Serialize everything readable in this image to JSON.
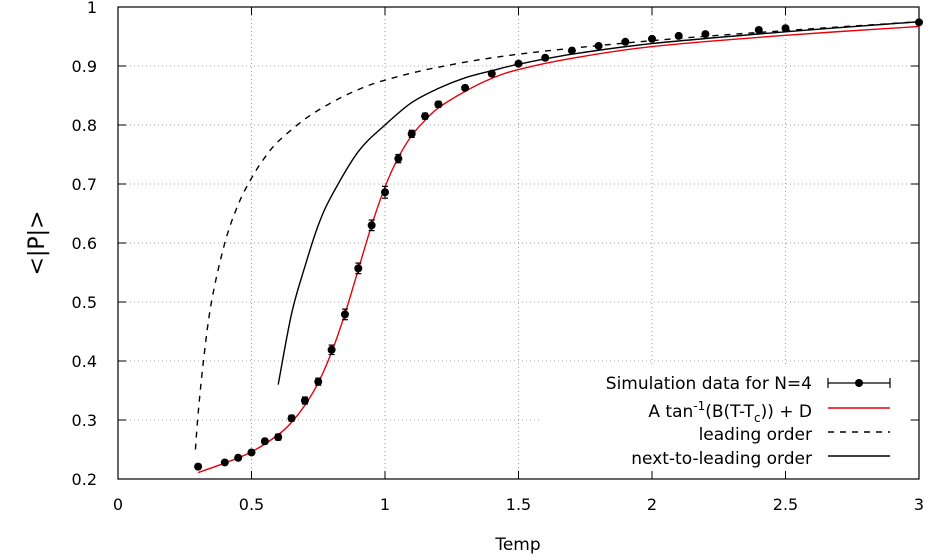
{
  "chart_data": {
    "type": "scatter",
    "xlabel": "Temp",
    "ylabel": "<|P|>",
    "xlim": [
      0,
      3
    ],
    "ylim": [
      0.2,
      1
    ],
    "grid": true,
    "legend_position": "bottom-right",
    "x_ticks": [
      "0",
      "0.5",
      "1",
      "1.5",
      "2",
      "2.5",
      "3"
    ],
    "y_ticks": [
      "0.2",
      "0.3",
      "0.4",
      "0.5",
      "0.6",
      "0.7",
      "0.8",
      "0.9",
      "1"
    ],
    "series": [
      {
        "name": "Simulation data for N=4",
        "style": "points-errorbars",
        "color": "#000000",
        "x": [
          0.3,
          0.4,
          0.45,
          0.5,
          0.55,
          0.6,
          0.65,
          0.7,
          0.75,
          0.8,
          0.85,
          0.9,
          0.95,
          1.0,
          1.05,
          1.1,
          1.15,
          1.2,
          1.3,
          1.4,
          1.5,
          1.6,
          1.7,
          1.8,
          1.9,
          2.0,
          2.1,
          2.2,
          2.4,
          2.5,
          3.0
        ],
        "y": [
          0.221,
          0.228,
          0.236,
          0.245,
          0.264,
          0.271,
          0.303,
          0.333,
          0.365,
          0.419,
          0.479,
          0.557,
          0.63,
          0.686,
          0.743,
          0.785,
          0.815,
          0.835,
          0.863,
          0.887,
          0.904,
          0.914,
          0.926,
          0.934,
          0.941,
          0.946,
          0.951,
          0.954,
          0.961,
          0.964,
          0.974
        ],
        "yerr": [
          0.004,
          0.003,
          0.003,
          0.004,
          0.004,
          0.005,
          0.005,
          0.006,
          0.006,
          0.008,
          0.009,
          0.009,
          0.009,
          0.01,
          0.007,
          0.006,
          0.005,
          0.005,
          0.004,
          0.004,
          0.003,
          0.003,
          0.003,
          0.003,
          0.003,
          0.003,
          0.003,
          0.003,
          0.003,
          0.003,
          0.003
        ]
      },
      {
        "name": "A tan-1(B(T-Tc)) + D",
        "style": "line",
        "color": "#e8000b",
        "x": [
          0.3,
          0.4,
          0.5,
          0.6,
          0.65,
          0.7,
          0.75,
          0.8,
          0.85,
          0.9,
          0.95,
          1.0,
          1.05,
          1.1,
          1.15,
          1.2,
          1.3,
          1.4,
          1.5,
          1.7,
          2.0,
          2.5,
          3.0
        ],
        "y": [
          0.211,
          0.227,
          0.246,
          0.275,
          0.296,
          0.325,
          0.363,
          0.415,
          0.48,
          0.555,
          0.63,
          0.695,
          0.745,
          0.782,
          0.808,
          0.829,
          0.857,
          0.879,
          0.894,
          0.913,
          0.933,
          0.952,
          0.967
        ]
      },
      {
        "name": "leading order",
        "style": "dashed-line",
        "color": "#000000",
        "x": [
          0.29,
          0.3,
          0.32,
          0.35,
          0.4,
          0.45,
          0.5,
          0.55,
          0.6,
          0.7,
          0.8,
          0.9,
          1.0,
          1.2,
          1.5,
          2.0,
          2.5,
          3.0
        ],
        "y": [
          0.25,
          0.31,
          0.4,
          0.5,
          0.6,
          0.665,
          0.71,
          0.745,
          0.772,
          0.81,
          0.838,
          0.86,
          0.876,
          0.898,
          0.92,
          0.943,
          0.96,
          0.975
        ]
      },
      {
        "name": "next-to-leading order",
        "style": "line",
        "color": "#000000",
        "x": [
          0.6,
          0.65,
          0.7,
          0.75,
          0.8,
          0.9,
          1.0,
          1.1,
          1.2,
          1.3,
          1.4,
          1.5,
          1.7,
          2.0,
          2.5,
          3.0
        ],
        "y": [
          0.36,
          0.48,
          0.56,
          0.63,
          0.68,
          0.755,
          0.8,
          0.838,
          0.862,
          0.88,
          0.892,
          0.903,
          0.92,
          0.938,
          0.958,
          0.975
        ]
      }
    ],
    "legend": [
      {
        "label": "Simulation data for N=4",
        "series": 0
      },
      {
        "label_pre": "A tan",
        "label_sup": "-1",
        "label_mid": "(B(T-T",
        "label_sub": "c",
        "label_post": ")) + D",
        "series": 1
      },
      {
        "label": "leading order",
        "series": 2
      },
      {
        "label": "next-to-leading order",
        "series": 3
      }
    ]
  }
}
